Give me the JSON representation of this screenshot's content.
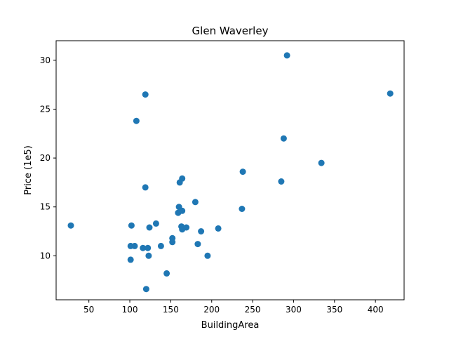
{
  "chart_data": {
    "type": "scatter",
    "title": "Glen Waverley",
    "xlabel": "BuildingArea",
    "ylabel": "Price (1e5)",
    "xlim": [
      10,
      435
    ],
    "ylim": [
      5.5,
      32
    ],
    "xticks": [
      50,
      100,
      150,
      200,
      250,
      300,
      350,
      400
    ],
    "yticks": [
      10,
      15,
      20,
      25,
      30
    ],
    "grid": false,
    "legend": "none",
    "marker_color": "#1f77b4",
    "points": [
      {
        "x": 28,
        "y": 13.1
      },
      {
        "x": 101,
        "y": 9.6
      },
      {
        "x": 101,
        "y": 11.0
      },
      {
        "x": 102,
        "y": 13.1
      },
      {
        "x": 106,
        "y": 11.0
      },
      {
        "x": 108,
        "y": 23.8
      },
      {
        "x": 116,
        "y": 10.8
      },
      {
        "x": 119,
        "y": 26.5
      },
      {
        "x": 119,
        "y": 17.0
      },
      {
        "x": 120,
        "y": 6.6
      },
      {
        "x": 122,
        "y": 10.8
      },
      {
        "x": 123,
        "y": 10.0
      },
      {
        "x": 124,
        "y": 12.9
      },
      {
        "x": 132,
        "y": 13.3
      },
      {
        "x": 138,
        "y": 11.0
      },
      {
        "x": 145,
        "y": 8.2
      },
      {
        "x": 152,
        "y": 11.8
      },
      {
        "x": 152,
        "y": 11.4
      },
      {
        "x": 159,
        "y": 14.4
      },
      {
        "x": 160,
        "y": 15.0
      },
      {
        "x": 161,
        "y": 17.5
      },
      {
        "x": 163,
        "y": 13.0
      },
      {
        "x": 164,
        "y": 17.9
      },
      {
        "x": 164,
        "y": 12.7
      },
      {
        "x": 164,
        "y": 14.6
      },
      {
        "x": 169,
        "y": 12.9
      },
      {
        "x": 180,
        "y": 15.5
      },
      {
        "x": 183,
        "y": 11.2
      },
      {
        "x": 187,
        "y": 12.5
      },
      {
        "x": 195,
        "y": 10.0
      },
      {
        "x": 208,
        "y": 12.8
      },
      {
        "x": 237,
        "y": 14.8
      },
      {
        "x": 238,
        "y": 18.6
      },
      {
        "x": 285,
        "y": 17.6
      },
      {
        "x": 288,
        "y": 22.0
      },
      {
        "x": 292,
        "y": 30.5
      },
      {
        "x": 334,
        "y": 19.5
      },
      {
        "x": 418,
        "y": 26.6
      }
    ]
  }
}
